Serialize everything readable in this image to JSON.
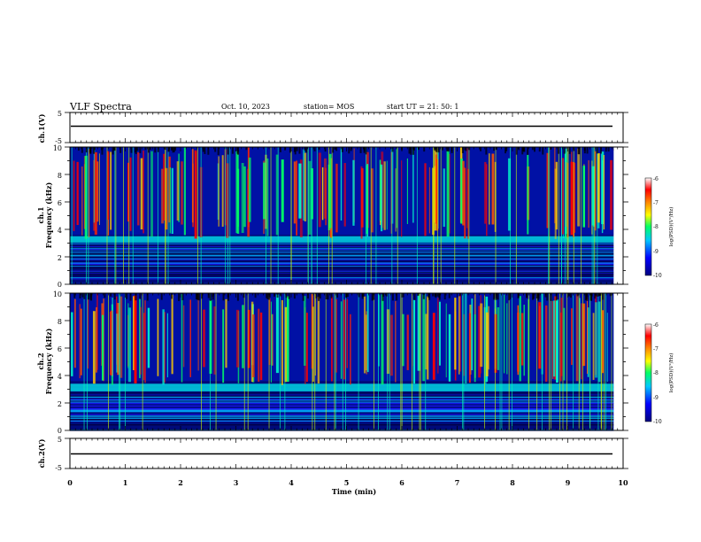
{
  "header": {
    "title": "VLF Spectra",
    "date": "Oct. 10, 2023",
    "station": "station= MOS",
    "start": "start  UT =  21: 50: 1"
  },
  "panels": {
    "ch1_wave_label": "ch.1(V)",
    "ch2_wave_label": "ch.2(V)",
    "ch1_spec_label_a": "ch.1",
    "ch1_spec_label_b": "Frequency (kHz)",
    "ch2_spec_label_a": "ch.2",
    "ch2_spec_label_b": "Frequency (kHz)",
    "wave_ticks": [
      "5",
      "-5"
    ],
    "freq_ticks": [
      "0",
      "2",
      "4",
      "6",
      "8",
      "10"
    ],
    "time_ticks": [
      "0",
      "1",
      "2",
      "3",
      "4",
      "5",
      "6",
      "7",
      "8",
      "9",
      "10"
    ],
    "xlabel": "Time (min)",
    "colorbar_label": "log(PSD)(V²/Hz)",
    "colorbar_ticks": [
      "-6",
      "-7",
      "-8",
      "-9",
      "-10"
    ]
  },
  "chart_data": {
    "type": "heatmap",
    "title": "VLF Spectra",
    "xlabel": "Time (min)",
    "ylabel": "Frequency (kHz)",
    "xlim": [
      0,
      10
    ],
    "ylim": [
      0,
      10
    ],
    "x_data_max": 9.83,
    "colorbar": {
      "label": "log(PSD)(V²/Hz)",
      "range": [
        -10,
        -6
      ],
      "colors": [
        "#000080",
        "#0000ff",
        "#00c8ff",
        "#00ff66",
        "#ffff00",
        "#ff8800",
        "#ff0000",
        "#ffffff"
      ]
    },
    "waveform_ylim": [
      -5,
      5
    ],
    "series": [
      {
        "name": "ch.1",
        "band_edge_khz": [
          3.3,
          3.5
        ],
        "band_change_min": [
          1.95,
          2.5,
          4.4,
          8.0
        ]
      },
      {
        "name": "ch.2",
        "band_edge_khz": [
          3.1,
          3.4
        ],
        "band_change_min": [
          1.95,
          8.0
        ]
      }
    ]
  }
}
